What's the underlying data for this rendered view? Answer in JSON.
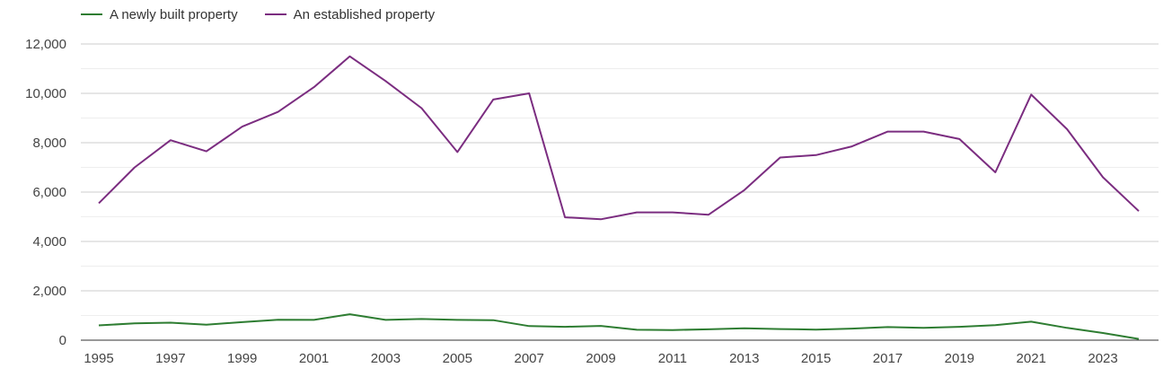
{
  "chart_data": {
    "type": "line",
    "title": "",
    "xlabel": "",
    "ylabel": "",
    "legend_position": "top-left",
    "grid": true,
    "ylim": [
      0,
      12000
    ],
    "y_ticks": [
      0,
      2000,
      4000,
      6000,
      8000,
      10000,
      12000
    ],
    "y_tick_labels": [
      "0",
      "2,000",
      "4,000",
      "6,000",
      "8,000",
      "10,000",
      "12,000"
    ],
    "x": [
      1995,
      1996,
      1997,
      1998,
      1999,
      2000,
      2001,
      2002,
      2003,
      2004,
      2005,
      2006,
      2007,
      2008,
      2009,
      2010,
      2011,
      2012,
      2013,
      2014,
      2015,
      2016,
      2017,
      2018,
      2019,
      2020,
      2021,
      2022,
      2023,
      2024
    ],
    "x_ticks": [
      1995,
      1997,
      1999,
      2001,
      2003,
      2005,
      2007,
      2009,
      2011,
      2013,
      2015,
      2017,
      2019,
      2021,
      2023
    ],
    "x_tick_labels": [
      "1995",
      "1997",
      "1999",
      "2001",
      "2003",
      "2005",
      "2007",
      "2009",
      "2011",
      "2013",
      "2015",
      "2017",
      "2019",
      "2021",
      "2023"
    ],
    "series": [
      {
        "name": "A newly built property",
        "color": "#2e7d32",
        "values": [
          600,
          680,
          710,
          630,
          730,
          830,
          820,
          1050,
          820,
          860,
          820,
          810,
          570,
          540,
          580,
          420,
          410,
          440,
          480,
          450,
          430,
          470,
          530,
          500,
          540,
          610,
          750,
          500,
          290,
          50
        ]
      },
      {
        "name": "An established property",
        "color": "#7b2d80",
        "values": [
          5550,
          7000,
          8100,
          7650,
          8650,
          9250,
          10250,
          11500,
          10500,
          9400,
          7620,
          9750,
          10000,
          4980,
          4900,
          5180,
          5180,
          5080,
          6080,
          7400,
          7500,
          7850,
          8450,
          8450,
          8150,
          6800,
          9950,
          8550,
          6600,
          5230
        ]
      }
    ]
  }
}
